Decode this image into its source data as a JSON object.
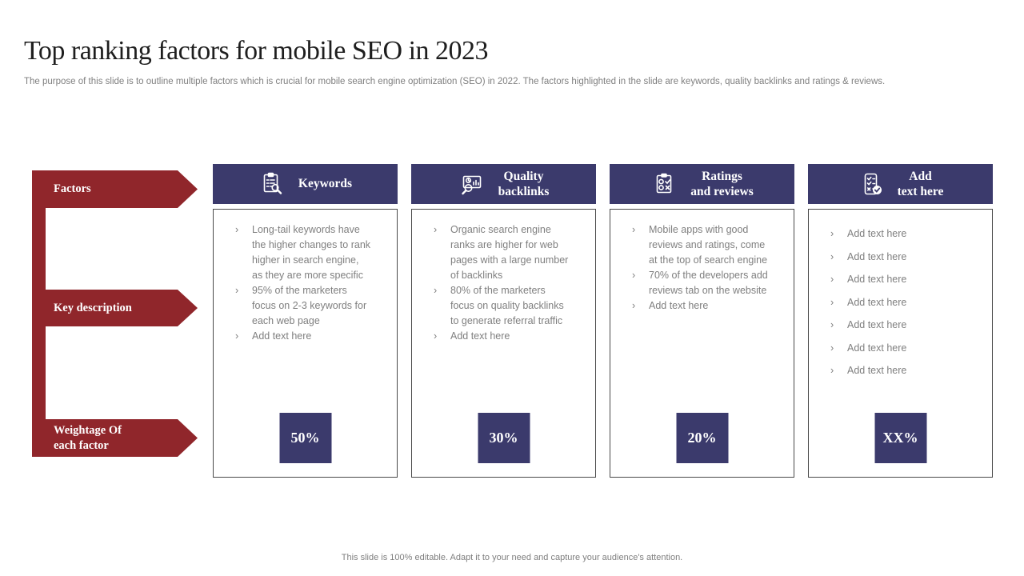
{
  "slide": {
    "title": "Top ranking factors for mobile SEO in 2023",
    "subtitle": "The purpose of this slide is to outline multiple factors which is crucial for mobile search engine optimization (SEO) in 2022. The factors highlighted in the slide are keywords, quality backlinks and ratings & reviews.",
    "footer": "This slide is 100% editable. Adapt it to your need and capture your audience's attention."
  },
  "list_bullet": "›",
  "colors": {
    "accent_red": "#90262b",
    "accent_navy": "#3b3a6c",
    "body_text": "#7f7f7f",
    "card_border": "#4a4a4a"
  },
  "row_labels": [
    {
      "label": "Factors"
    },
    {
      "label": "Key description"
    },
    {
      "label": "Weightage Of each factor"
    }
  ],
  "columns": [
    {
      "icon": "clipboard-search-icon",
      "title": "Keywords",
      "title_lines": [
        "Keywords"
      ],
      "bullets": [
        "Long-tail keywords have the higher changes to rank higher in search engine, as they are more specific",
        "95% of the marketers focus on 2-3 keywords for each web page",
        "Add text here"
      ],
      "weightage": "50%"
    },
    {
      "icon": "chart-search-icon",
      "title": "Quality backlinks",
      "title_lines": [
        "Quality",
        "backlinks"
      ],
      "bullets": [
        "Organic search engine ranks are higher for web pages with a large number of backlinks",
        "80% of the marketers focus on quality backlinks to generate referral traffic",
        "Add text here"
      ],
      "weightage": "30%"
    },
    {
      "icon": "review-checklist-icon",
      "title": "Ratings and reviews",
      "title_lines": [
        "Ratings",
        "and reviews"
      ],
      "bullets": [
        "Mobile apps with good reviews and ratings, come at the top of search engine",
        "70% of the developers add reviews tab on the website",
        "Add text here"
      ],
      "weightage": "20%"
    },
    {
      "icon": "phone-checklist-icon",
      "title": "Add text here",
      "title_lines": [
        "Add",
        "text here"
      ],
      "bullets": [
        "Add text here",
        "Add text here",
        "Add text here",
        "Add text here",
        "Add text here",
        "Add text here",
        "Add text here"
      ],
      "weightage": "XX%"
    }
  ]
}
